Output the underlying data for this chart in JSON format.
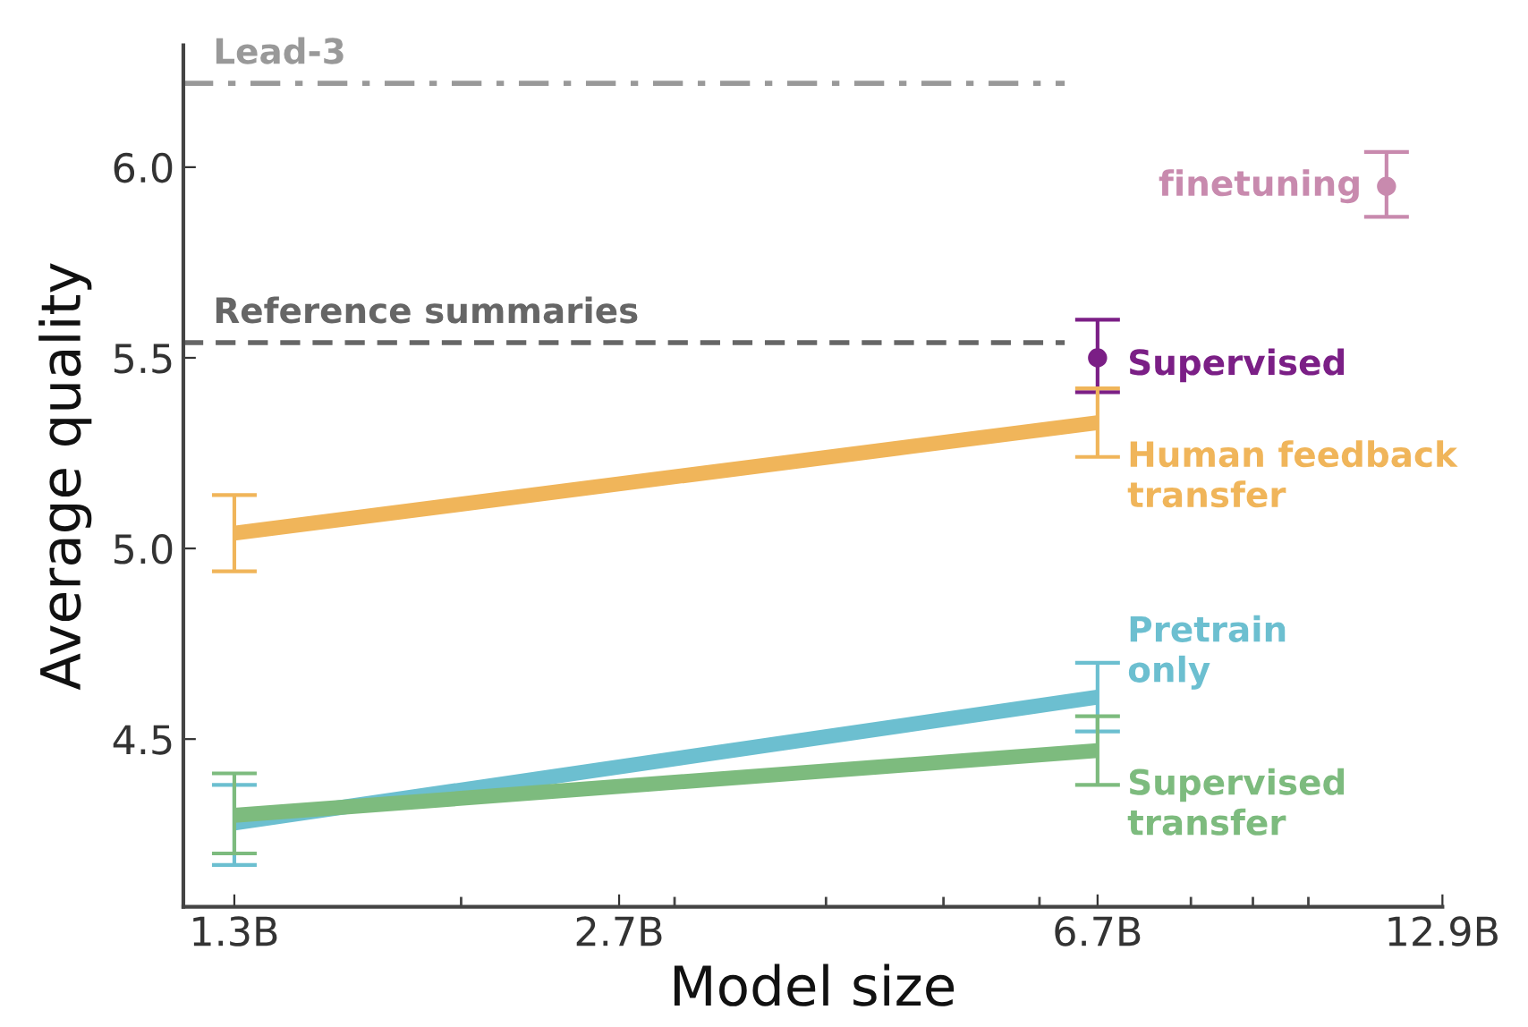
{
  "chart_data": {
    "type": "line",
    "xlabel": "Model size",
    "ylabel": "Average quality",
    "log": "x",
    "grid": false,
    "marker": "none",
    "line_style": "solid",
    "xlim": [
      1.18,
      12.9
    ],
    "ylim": [
      4.06,
      6.32
    ],
    "xticks": [
      {
        "value": 1.3,
        "label": "1.3B"
      },
      {
        "value": 2,
        "label": null
      },
      {
        "value": 2.7,
        "label": "2.7B"
      },
      {
        "value": 3,
        "label": null
      },
      {
        "value": 4,
        "label": null
      },
      {
        "value": 5,
        "label": null
      },
      {
        "value": 6,
        "label": null
      },
      {
        "value": 6.7,
        "label": "6.7B"
      },
      {
        "value": 8,
        "label": null
      },
      {
        "value": 9,
        "label": null
      },
      {
        "value": 10,
        "label": null
      },
      {
        "value": 12.9,
        "label": "12.9B"
      }
    ],
    "yticks": [
      {
        "value": 4.5,
        "label": "4.5"
      },
      {
        "value": 5,
        "label": "5.0"
      },
      {
        "value": 5.5,
        "label": "5.5"
      },
      {
        "value": 6,
        "label": "6.0"
      }
    ],
    "ref_lines": [
      {
        "axis": "y",
        "value": 6.22,
        "label": "Lead-3",
        "color": "#999999",
        "line_style": "dashdot"
      },
      {
        "axis": "y",
        "value": 5.54,
        "label": "Reference summaries",
        "color": "#666666",
        "line_style": "dashed"
      }
    ],
    "series": [
      {
        "name": "finetuning",
        "type": "scatter",
        "marker": "circle",
        "color": "#c88aae",
        "x": [
          11.6
        ],
        "values": [
          5.95
        ],
        "errors": [
          [
            5.87,
            6.04
          ]
        ]
      },
      {
        "name": "Supervised",
        "type": "scatter",
        "marker": "circle",
        "color": "#7b1f86",
        "x": [
          6.7
        ],
        "values": [
          5.5
        ],
        "errors": [
          [
            5.41,
            5.6
          ]
        ]
      },
      {
        "name": "Human feedback\ntransfer",
        "color": "#f0b55a",
        "x": [
          1.3,
          6.7
        ],
        "values": [
          5.04,
          5.33
        ],
        "errors": [
          [
            4.94,
            5.14
          ],
          [
            5.24,
            5.42
          ]
        ]
      },
      {
        "name": "Pretrain\nonly",
        "color": "#6cbfd0",
        "x": [
          1.3,
          6.7
        ],
        "values": [
          4.28,
          4.61
        ],
        "errors": [
          [
            4.17,
            4.38
          ],
          [
            4.52,
            4.7
          ]
        ]
      },
      {
        "name": "Supervised\ntransfer",
        "color": "#7dbb7e",
        "x": [
          1.3,
          6.7
        ],
        "values": [
          4.3,
          4.47
        ],
        "errors": [
          [
            4.2,
            4.41
          ],
          [
            4.38,
            4.56
          ]
        ]
      }
    ]
  }
}
